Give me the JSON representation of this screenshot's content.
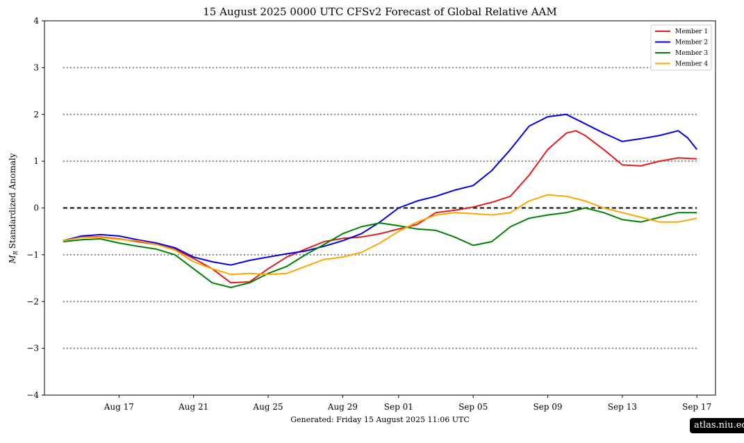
{
  "chart_data": {
    "type": "line",
    "title": "15  August  2025 0000 UTC   CFSv2 Forecast of Global Relative AAM",
    "xlabel": "",
    "ylabel": "Standardized Anomaly",
    "ylabel_symbol": "M",
    "ylabel_subscript": "R",
    "ylim": [
      -4,
      4
    ],
    "yticks": [
      {
        "value": 4,
        "label": "4"
      },
      {
        "value": 3,
        "label": "3"
      },
      {
        "value": 2,
        "label": "2"
      },
      {
        "value": 1,
        "label": "1"
      },
      {
        "value": 0,
        "label": "0"
      },
      {
        "value": -1,
        "label": "−1"
      },
      {
        "value": -2,
        "label": "−2"
      },
      {
        "value": -3,
        "label": "−3"
      },
      {
        "value": -4,
        "label": "−4"
      }
    ],
    "xlim": [
      "2025-08-13",
      "2025-09-18"
    ],
    "xticks": [
      {
        "date": "2025-08-17",
        "label": "Aug 17"
      },
      {
        "date": "2025-08-21",
        "label": "Aug 21"
      },
      {
        "date": "2025-08-25",
        "label": "Aug 25"
      },
      {
        "date": "2025-08-29",
        "label": "Aug 29"
      },
      {
        "date": "2025-09-01",
        "label": "Sep 01"
      },
      {
        "date": "2025-09-05",
        "label": "Sep 05"
      },
      {
        "date": "2025-09-09",
        "label": "Sep 09"
      },
      {
        "date": "2025-09-13",
        "label": "Sep 13"
      },
      {
        "date": "2025-09-17",
        "label": "Sep 17"
      }
    ],
    "reference_lines": [
      {
        "value": 0,
        "style": "dashed",
        "color": "#000000"
      },
      {
        "value": 3,
        "style": "dotted",
        "color": "#808080"
      },
      {
        "value": 2,
        "style": "dotted",
        "color": "#808080"
      },
      {
        "value": 1,
        "style": "dotted",
        "color": "#808080"
      },
      {
        "value": -1,
        "style": "dotted",
        "color": "#808080"
      },
      {
        "value": -2,
        "style": "dotted",
        "color": "#808080"
      },
      {
        "value": -3,
        "style": "dotted",
        "color": "#808080"
      }
    ],
    "legend": "top-right",
    "grid": false,
    "series": [
      {
        "name": "Member 1",
        "color": "#e41a1c",
        "points": [
          [
            "2025-08-14",
            -0.7
          ],
          [
            "2025-08-15",
            -0.62
          ],
          [
            "2025-08-16",
            -0.62
          ],
          [
            "2025-08-17",
            -0.66
          ],
          [
            "2025-08-18",
            -0.72
          ],
          [
            "2025-08-19",
            -0.78
          ],
          [
            "2025-08-20",
            -0.88
          ],
          [
            "2025-08-21",
            -1.08
          ],
          [
            "2025-08-22",
            -1.3
          ],
          [
            "2025-08-23",
            -1.6
          ],
          [
            "2025-08-24",
            -1.58
          ],
          [
            "2025-08-25",
            -1.3
          ],
          [
            "2025-08-26",
            -1.05
          ],
          [
            "2025-08-27",
            -0.88
          ],
          [
            "2025-08-28",
            -0.72
          ],
          [
            "2025-08-29",
            -0.65
          ],
          [
            "2025-08-30",
            -0.62
          ],
          [
            "2025-08-31",
            -0.55
          ],
          [
            "2025-09-01",
            -0.45
          ],
          [
            "2025-09-02",
            -0.35
          ],
          [
            "2025-09-03",
            -0.1
          ],
          [
            "2025-09-04",
            -0.05
          ],
          [
            "2025-09-05",
            0.02
          ],
          [
            "2025-09-06",
            0.12
          ],
          [
            "2025-09-07",
            0.25
          ],
          [
            "2025-09-08",
            0.7
          ],
          [
            "2025-09-09",
            1.25
          ],
          [
            "2025-09-10",
            1.6
          ],
          [
            "2025-09-10T12:00",
            1.65
          ],
          [
            "2025-09-11",
            1.55
          ],
          [
            "2025-09-12",
            1.25
          ],
          [
            "2025-09-13",
            0.92
          ],
          [
            "2025-09-14",
            0.9
          ],
          [
            "2025-09-15",
            1.0
          ],
          [
            "2025-09-16",
            1.07
          ],
          [
            "2025-09-17",
            1.05
          ]
        ]
      },
      {
        "name": "Member 2",
        "color": "#0000e0",
        "points": [
          [
            "2025-08-14",
            -0.7
          ],
          [
            "2025-08-15",
            -0.6
          ],
          [
            "2025-08-16",
            -0.57
          ],
          [
            "2025-08-17",
            -0.6
          ],
          [
            "2025-08-18",
            -0.68
          ],
          [
            "2025-08-19",
            -0.75
          ],
          [
            "2025-08-20",
            -0.85
          ],
          [
            "2025-08-21",
            -1.05
          ],
          [
            "2025-08-22",
            -1.15
          ],
          [
            "2025-08-23",
            -1.22
          ],
          [
            "2025-08-24",
            -1.12
          ],
          [
            "2025-08-25",
            -1.05
          ],
          [
            "2025-08-26",
            -0.98
          ],
          [
            "2025-08-27",
            -0.92
          ],
          [
            "2025-08-28",
            -0.82
          ],
          [
            "2025-08-29",
            -0.7
          ],
          [
            "2025-08-30",
            -0.55
          ],
          [
            "2025-08-31",
            -0.3
          ],
          [
            "2025-09-01",
            0.0
          ],
          [
            "2025-09-02",
            0.15
          ],
          [
            "2025-09-03",
            0.25
          ],
          [
            "2025-09-04",
            0.38
          ],
          [
            "2025-09-05",
            0.48
          ],
          [
            "2025-09-06",
            0.8
          ],
          [
            "2025-09-07",
            1.25
          ],
          [
            "2025-09-08",
            1.75
          ],
          [
            "2025-09-09",
            1.95
          ],
          [
            "2025-09-10",
            2.0
          ],
          [
            "2025-09-11",
            1.8
          ],
          [
            "2025-09-12",
            1.6
          ],
          [
            "2025-09-13",
            1.42
          ],
          [
            "2025-09-14",
            1.48
          ],
          [
            "2025-09-15",
            1.55
          ],
          [
            "2025-09-16",
            1.65
          ],
          [
            "2025-09-16T12:00",
            1.5
          ],
          [
            "2025-09-17",
            1.25
          ]
        ]
      },
      {
        "name": "Member 3",
        "color": "#008000",
        "points": [
          [
            "2025-08-14",
            -0.72
          ],
          [
            "2025-08-15",
            -0.68
          ],
          [
            "2025-08-16",
            -0.66
          ],
          [
            "2025-08-17",
            -0.75
          ],
          [
            "2025-08-18",
            -0.82
          ],
          [
            "2025-08-19",
            -0.88
          ],
          [
            "2025-08-20",
            -1.0
          ],
          [
            "2025-08-21",
            -1.3
          ],
          [
            "2025-08-22",
            -1.6
          ],
          [
            "2025-08-23",
            -1.7
          ],
          [
            "2025-08-24",
            -1.6
          ],
          [
            "2025-08-25",
            -1.4
          ],
          [
            "2025-08-26",
            -1.25
          ],
          [
            "2025-08-27",
            -1.0
          ],
          [
            "2025-08-28",
            -0.78
          ],
          [
            "2025-08-29",
            -0.55
          ],
          [
            "2025-08-30",
            -0.4
          ],
          [
            "2025-08-31",
            -0.32
          ],
          [
            "2025-09-01",
            -0.38
          ],
          [
            "2025-09-02",
            -0.45
          ],
          [
            "2025-09-03",
            -0.48
          ],
          [
            "2025-09-04",
            -0.62
          ],
          [
            "2025-09-05",
            -0.8
          ],
          [
            "2025-09-06",
            -0.72
          ],
          [
            "2025-09-07",
            -0.4
          ],
          [
            "2025-09-08",
            -0.22
          ],
          [
            "2025-09-09",
            -0.15
          ],
          [
            "2025-09-10",
            -0.1
          ],
          [
            "2025-09-11",
            0.0
          ],
          [
            "2025-09-12",
            -0.1
          ],
          [
            "2025-09-13",
            -0.25
          ],
          [
            "2025-09-14",
            -0.3
          ],
          [
            "2025-09-15",
            -0.2
          ],
          [
            "2025-09-16",
            -0.1
          ],
          [
            "2025-09-17",
            -0.1
          ]
        ]
      },
      {
        "name": "Member 4",
        "color": "#ffa500",
        "points": [
          [
            "2025-08-14",
            -0.7
          ],
          [
            "2025-08-15",
            -0.63
          ],
          [
            "2025-08-16",
            -0.63
          ],
          [
            "2025-08-17",
            -0.67
          ],
          [
            "2025-08-18",
            -0.7
          ],
          [
            "2025-08-19",
            -0.78
          ],
          [
            "2025-08-20",
            -0.9
          ],
          [
            "2025-08-21",
            -1.15
          ],
          [
            "2025-08-22",
            -1.3
          ],
          [
            "2025-08-23",
            -1.42
          ],
          [
            "2025-08-24",
            -1.4
          ],
          [
            "2025-08-25",
            -1.42
          ],
          [
            "2025-08-26",
            -1.4
          ],
          [
            "2025-08-27",
            -1.25
          ],
          [
            "2025-08-28",
            -1.1
          ],
          [
            "2025-08-29",
            -1.05
          ],
          [
            "2025-08-30",
            -0.95
          ],
          [
            "2025-08-31",
            -0.75
          ],
          [
            "2025-09-01",
            -0.5
          ],
          [
            "2025-09-02",
            -0.3
          ],
          [
            "2025-09-03",
            -0.15
          ],
          [
            "2025-09-04",
            -0.1
          ],
          [
            "2025-09-05",
            -0.12
          ],
          [
            "2025-09-06",
            -0.15
          ],
          [
            "2025-09-07",
            -0.1
          ],
          [
            "2025-09-08",
            0.15
          ],
          [
            "2025-09-09",
            0.28
          ],
          [
            "2025-09-10",
            0.25
          ],
          [
            "2025-09-11",
            0.15
          ],
          [
            "2025-09-12",
            0.0
          ],
          [
            "2025-09-13",
            -0.1
          ],
          [
            "2025-09-14",
            -0.2
          ],
          [
            "2025-09-15",
            -0.3
          ],
          [
            "2025-09-16",
            -0.3
          ],
          [
            "2025-09-17",
            -0.22
          ]
        ]
      }
    ]
  },
  "footer": {
    "generated": "Generated: Friday  15  August  2025  11:06 UTC"
  },
  "badge": {
    "text": "atlas.niu.edu"
  }
}
